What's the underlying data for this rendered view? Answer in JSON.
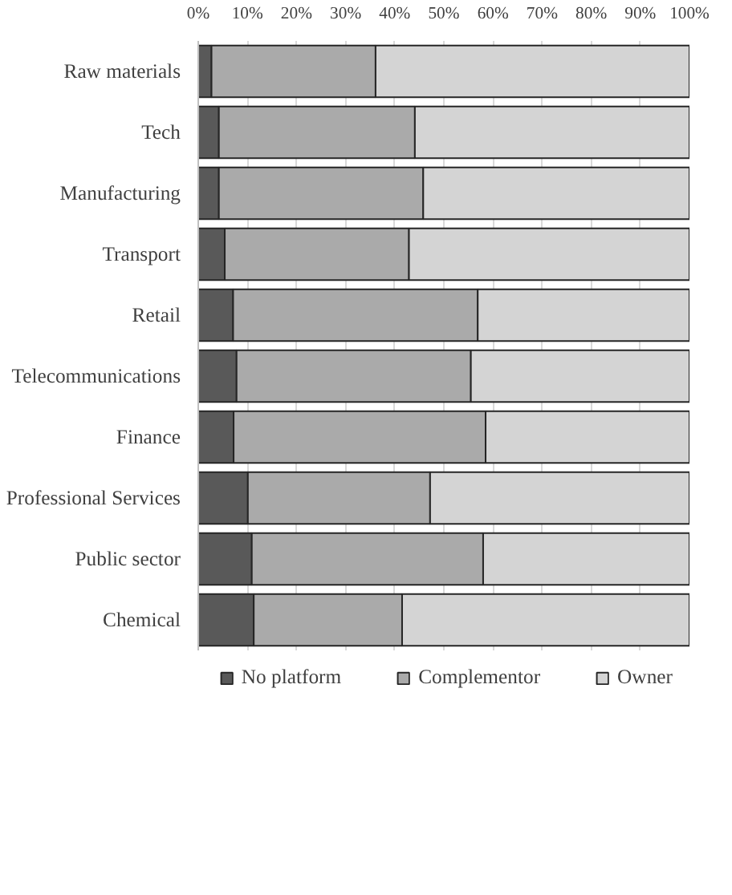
{
  "chart_data": {
    "type": "bar",
    "orientation": "horizontal",
    "stacked": true,
    "categories": [
      "Raw materials",
      "Tech",
      "Manufacturing",
      "Transport",
      "Retail",
      "Telecommunications",
      "Finance",
      "Professional Services",
      "Public sector",
      "Chemical"
    ],
    "series": [
      {
        "name": "No platform",
        "color": "#595959",
        "values": [
          2.7,
          4.2,
          4.2,
          5.4,
          7.1,
          7.8,
          7.2,
          10.1,
          10.9,
          11.3
        ]
      },
      {
        "name": "Complementor",
        "color": "#aaaaaa",
        "values": [
          33.4,
          39.9,
          41.6,
          37.5,
          49.8,
          47.7,
          51.3,
          37.1,
          47.1,
          30.2
        ]
      },
      {
        "name": "Owner",
        "color": "#d4d4d4",
        "values": [
          63.9,
          55.9,
          54.2,
          57.1,
          43.1,
          44.5,
          41.5,
          52.8,
          42.0,
          58.5
        ]
      }
    ],
    "xlim": [
      0,
      100
    ],
    "xticks": [
      {
        "value": 0,
        "label": "0%"
      },
      {
        "value": 10,
        "label": "10%"
      },
      {
        "value": 20,
        "label": "20%"
      },
      {
        "value": 30,
        "label": "30%"
      },
      {
        "value": 40,
        "label": "40%"
      },
      {
        "value": 50,
        "label": "50%"
      },
      {
        "value": 60,
        "label": "60%"
      },
      {
        "value": 70,
        "label": "70%"
      },
      {
        "value": 80,
        "label": "80%"
      },
      {
        "value": 90,
        "label": "90%"
      },
      {
        "value": 100,
        "label": "100%"
      }
    ],
    "grid": "x",
    "legend": "bottom"
  }
}
